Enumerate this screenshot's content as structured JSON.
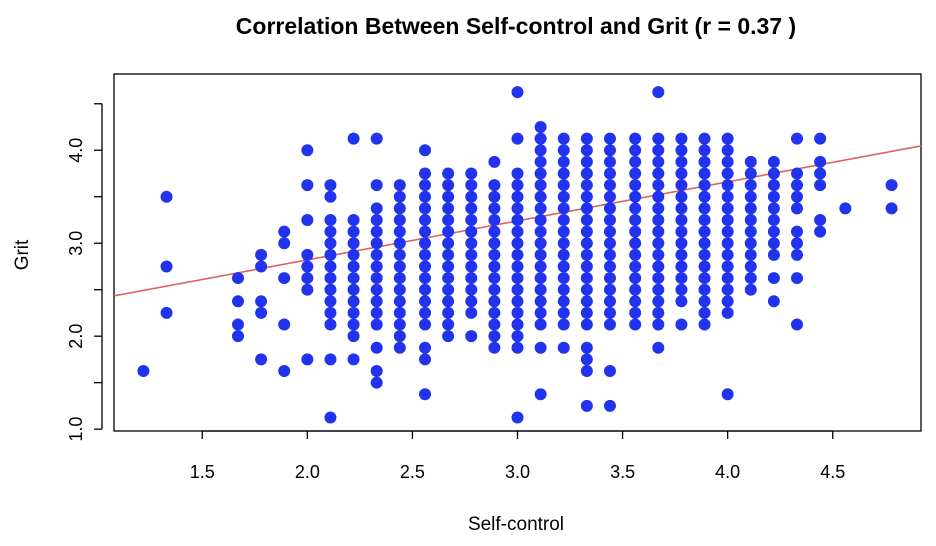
{
  "chart_data": {
    "type": "scatter",
    "title": "Correlation Between Self-control and Grit (r = 0.37 )",
    "xlabel": "Self-control",
    "ylabel": "Grit",
    "xlim": [
      1.08,
      4.92
    ],
    "ylim": [
      0.98,
      4.82
    ],
    "xticks": [
      1.5,
      2.0,
      2.5,
      3.0,
      3.5,
      4.0,
      4.5
    ],
    "xtick_labels": [
      "1.5",
      "2.0",
      "2.5",
      "3.0",
      "3.5",
      "4.0",
      "4.5"
    ],
    "yticks": [
      1.0,
      1.5,
      2.0,
      2.5,
      3.0,
      3.5,
      4.0,
      4.5
    ],
    "ytick_labels": [
      "1.0",
      "",
      "2.0",
      "",
      "3.0",
      "",
      "4.0",
      ""
    ],
    "grid": false,
    "point_color": "#2233ee",
    "line_color": "#e06060",
    "regression_line": {
      "intercept": 1.98,
      "slope": 0.42
    },
    "columns": [
      {
        "x": 1.22,
        "y": [
          1.625
        ]
      },
      {
        "x": 1.33,
        "y": [
          2.25,
          2.75,
          3.5
        ]
      },
      {
        "x": 1.67,
        "y": [
          2.0,
          2.125,
          2.375,
          2.625
        ]
      },
      {
        "x": 1.78,
        "y": [
          1.75,
          2.25,
          2.375,
          2.75,
          2.875
        ]
      },
      {
        "x": 1.89,
        "y": [
          1.625,
          2.125,
          2.625,
          3.0,
          3.125
        ]
      },
      {
        "x": 2.0,
        "y": [
          1.75,
          2.5,
          2.625,
          2.75,
          2.875,
          3.25,
          3.625,
          4.0
        ]
      },
      {
        "x": 2.11,
        "y": [
          1.125,
          1.75,
          2.125,
          2.25,
          2.375,
          2.5,
          2.625,
          2.75,
          2.875,
          3.0,
          3.125,
          3.25,
          3.5,
          3.625
        ]
      },
      {
        "x": 2.22,
        "y": [
          1.75,
          2.0,
          2.125,
          2.25,
          2.375,
          2.5,
          2.625,
          2.75,
          2.875,
          3.0,
          3.125,
          3.25,
          4.125
        ]
      },
      {
        "x": 2.33,
        "y": [
          1.5,
          1.625,
          1.875,
          2.125,
          2.25,
          2.375,
          2.5,
          2.625,
          2.75,
          2.875,
          3.0,
          3.125,
          3.25,
          3.375,
          3.625,
          4.125
        ]
      },
      {
        "x": 2.44,
        "y": [
          1.875,
          2.0,
          2.125,
          2.25,
          2.375,
          2.5,
          2.625,
          2.75,
          2.875,
          3.0,
          3.125,
          3.25,
          3.375,
          3.5,
          3.625
        ]
      },
      {
        "x": 2.56,
        "y": [
          1.375,
          1.75,
          1.875,
          2.125,
          2.25,
          2.375,
          2.5,
          2.625,
          2.75,
          2.875,
          3.0,
          3.125,
          3.25,
          3.375,
          3.5,
          3.625,
          3.75,
          4.0
        ]
      },
      {
        "x": 2.67,
        "y": [
          2.0,
          2.125,
          2.25,
          2.375,
          2.5,
          2.625,
          2.75,
          2.875,
          3.0,
          3.125,
          3.25,
          3.375,
          3.5,
          3.625,
          3.75
        ]
      },
      {
        "x": 2.78,
        "y": [
          2.0,
          2.25,
          2.375,
          2.5,
          2.625,
          2.75,
          2.875,
          3.0,
          3.125,
          3.25,
          3.375,
          3.5,
          3.625,
          3.75
        ]
      },
      {
        "x": 2.89,
        "y": [
          1.875,
          2.0,
          2.125,
          2.25,
          2.375,
          2.5,
          2.625,
          2.75,
          2.875,
          3.0,
          3.125,
          3.25,
          3.375,
          3.5,
          3.625,
          3.875
        ]
      },
      {
        "x": 3.0,
        "y": [
          1.125,
          1.875,
          2.0,
          2.125,
          2.25,
          2.375,
          2.5,
          2.625,
          2.75,
          2.875,
          3.0,
          3.125,
          3.25,
          3.375,
          3.5,
          3.625,
          3.75,
          4.125,
          4.625
        ]
      },
      {
        "x": 3.11,
        "y": [
          1.375,
          1.875,
          2.125,
          2.25,
          2.375,
          2.5,
          2.625,
          2.75,
          2.875,
          3.0,
          3.125,
          3.25,
          3.375,
          3.5,
          3.625,
          3.75,
          3.875,
          4.0,
          4.125,
          4.25
        ]
      },
      {
        "x": 3.22,
        "y": [
          1.875,
          2.125,
          2.25,
          2.375,
          2.5,
          2.625,
          2.75,
          2.875,
          3.0,
          3.125,
          3.25,
          3.375,
          3.5,
          3.625,
          3.75,
          3.875,
          4.0,
          4.125
        ]
      },
      {
        "x": 3.33,
        "y": [
          1.25,
          1.625,
          1.75,
          1.875,
          2.125,
          2.25,
          2.375,
          2.5,
          2.625,
          2.75,
          2.875,
          3.0,
          3.125,
          3.25,
          3.375,
          3.5,
          3.625,
          3.75,
          3.875,
          4.0,
          4.125
        ]
      },
      {
        "x": 3.44,
        "y": [
          1.25,
          1.625,
          2.125,
          2.25,
          2.375,
          2.5,
          2.625,
          2.75,
          2.875,
          3.0,
          3.125,
          3.25,
          3.375,
          3.5,
          3.625,
          3.75,
          3.875,
          4.0,
          4.125
        ]
      },
      {
        "x": 3.56,
        "y": [
          2.125,
          2.25,
          2.375,
          2.5,
          2.625,
          2.75,
          2.875,
          3.0,
          3.125,
          3.25,
          3.375,
          3.5,
          3.625,
          3.75,
          3.875,
          4.0,
          4.125
        ]
      },
      {
        "x": 3.67,
        "y": [
          1.875,
          2.125,
          2.25,
          2.375,
          2.5,
          2.625,
          2.75,
          2.875,
          3.0,
          3.125,
          3.25,
          3.375,
          3.5,
          3.625,
          3.75,
          3.875,
          4.0,
          4.125,
          4.625
        ]
      },
      {
        "x": 3.78,
        "y": [
          2.125,
          2.375,
          2.5,
          2.625,
          2.75,
          2.875,
          3.0,
          3.125,
          3.25,
          3.375,
          3.5,
          3.625,
          3.75,
          3.875,
          4.0,
          4.125
        ]
      },
      {
        "x": 3.89,
        "y": [
          2.125,
          2.25,
          2.375,
          2.5,
          2.625,
          2.75,
          2.875,
          3.0,
          3.125,
          3.25,
          3.375,
          3.5,
          3.625,
          3.75,
          3.875,
          4.0,
          4.125
        ]
      },
      {
        "x": 4.0,
        "y": [
          1.375,
          2.25,
          2.375,
          2.5,
          2.625,
          2.75,
          2.875,
          3.0,
          3.125,
          3.25,
          3.375,
          3.5,
          3.625,
          3.75,
          3.875,
          4.0,
          4.125
        ]
      },
      {
        "x": 4.11,
        "y": [
          2.5,
          2.625,
          2.75,
          2.875,
          3.0,
          3.125,
          3.25,
          3.375,
          3.5,
          3.625,
          3.75,
          3.875
        ]
      },
      {
        "x": 4.22,
        "y": [
          2.375,
          2.625,
          2.875,
          3.0,
          3.125,
          3.25,
          3.375,
          3.5,
          3.625,
          3.75,
          3.875
        ]
      },
      {
        "x": 4.33,
        "y": [
          2.125,
          2.625,
          2.875,
          3.0,
          3.125,
          3.375,
          3.5,
          3.625,
          3.75,
          4.125
        ]
      },
      {
        "x": 4.44,
        "y": [
          3.125,
          3.25,
          3.625,
          3.75,
          3.875,
          4.125
        ]
      },
      {
        "x": 4.56,
        "y": [
          3.375
        ]
      },
      {
        "x": 4.78,
        "y": [
          3.375,
          3.625
        ]
      }
    ]
  }
}
